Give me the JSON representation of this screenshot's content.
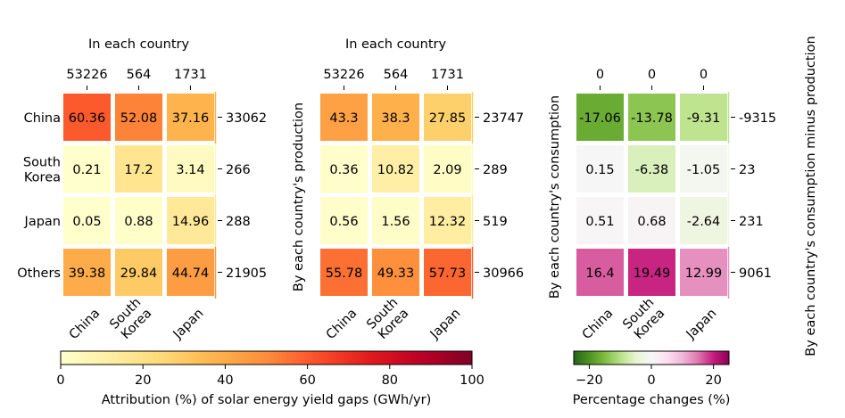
{
  "chart_data": [
    {
      "type": "heatmap",
      "panel": "production",
      "title": "In each country",
      "ylabel": "",
      "row_labels": [
        "China",
        "South\nKorea",
        "Japan",
        "Others"
      ],
      "col_labels": [
        "China",
        "South\nKorea",
        "Japan"
      ],
      "top_tick_labels": [
        "53226",
        "564",
        "1731"
      ],
      "right_tick_labels": [
        "33062",
        "266",
        "288",
        "21905"
      ],
      "values": [
        [
          60.36,
          52.08,
          37.16
        ],
        [
          0.21,
          17.2,
          3.14
        ],
        [
          0.05,
          0.88,
          14.96
        ],
        [
          39.38,
          29.84,
          44.74
        ]
      ],
      "cell_labels": [
        [
          "60.36",
          "52.08",
          "37.16"
        ],
        [
          "0.21",
          "17.2",
          "3.14"
        ],
        [
          "0.05",
          "0.88",
          "14.96"
        ],
        [
          "39.38",
          "29.84",
          "44.74"
        ]
      ],
      "colormap": "YlOrRd",
      "vlim": [
        0,
        100
      ]
    },
    {
      "type": "heatmap",
      "panel": "consumption",
      "title": "In each country",
      "ylabel": "By each country's production",
      "row_labels": [
        "China",
        "South\nKorea",
        "Japan",
        "Others"
      ],
      "col_labels": [
        "China",
        "South\nKorea",
        "Japan"
      ],
      "top_tick_labels": [
        "53226",
        "564",
        "1731"
      ],
      "right_tick_labels": [
        "23747",
        "289",
        "519",
        "30966"
      ],
      "values": [
        [
          43.3,
          38.3,
          27.85
        ],
        [
          0.36,
          10.82,
          2.09
        ],
        [
          0.56,
          1.56,
          12.32
        ],
        [
          55.78,
          49.33,
          57.73
        ]
      ],
      "cell_labels": [
        [
          "43.3",
          "38.3",
          "27.85"
        ],
        [
          "0.36",
          "10.82",
          "2.09"
        ],
        [
          "0.56",
          "1.56",
          "12.32"
        ],
        [
          "55.78",
          "49.33",
          "57.73"
        ]
      ],
      "colormap": "YlOrRd",
      "vlim": [
        0,
        100
      ]
    },
    {
      "type": "heatmap",
      "panel": "difference",
      "title": "",
      "ylabel": "By each country's consumption",
      "right_ylabel": "By each country's consumption minus production",
      "row_labels": [
        "China",
        "South\nKorea",
        "Japan",
        "Others"
      ],
      "col_labels": [
        "China",
        "South\nKorea",
        "Japan"
      ],
      "top_tick_labels": [
        "0",
        "0",
        "0"
      ],
      "right_tick_labels": [
        "-9315",
        "23",
        "231",
        "9061"
      ],
      "values": [
        [
          -17.06,
          -13.78,
          -9.31
        ],
        [
          0.15,
          -6.38,
          -1.05
        ],
        [
          0.51,
          0.68,
          -2.64
        ],
        [
          16.4,
          19.49,
          12.99
        ]
      ],
      "cell_labels": [
        [
          "-17.06",
          "-13.78",
          "-9.31"
        ],
        [
          "0.15",
          "-6.38",
          "-1.05"
        ],
        [
          "0.51",
          "0.68",
          "-2.64"
        ],
        [
          "16.4",
          "19.49",
          "12.99"
        ]
      ],
      "colormap": "PiYG_r",
      "vlim": [
        -25,
        25
      ]
    }
  ],
  "colorbars": [
    {
      "label": "Attribution (%) of solar energy yield gaps (GWh/yr)",
      "range": [
        0,
        100
      ],
      "ticks": [
        0,
        20,
        40,
        60,
        80,
        100
      ],
      "tick_labels": [
        "0",
        "20",
        "40",
        "60",
        "80",
        "100"
      ],
      "colormap": "YlOrRd"
    },
    {
      "label": "Percentage changes (%)",
      "range": [
        -25,
        25
      ],
      "ticks": [
        -20,
        0,
        20
      ],
      "tick_labels": [
        "−20",
        "0",
        "20"
      ],
      "colormap": "PiYG_r"
    }
  ],
  "colormaps": {
    "YlOrRd": [
      "#ffffcc",
      "#ffeda0",
      "#fed976",
      "#feb24c",
      "#fd8d3c",
      "#fc4e2a",
      "#e31a1c",
      "#bd0026",
      "#800026"
    ],
    "PiYG_r": [
      "#276419",
      "#4d9221",
      "#7fbc41",
      "#b8e186",
      "#e6f5d0",
      "#f7f7f7",
      "#fde0ef",
      "#f1b6da",
      "#de77ae",
      "#c51b7d",
      "#8e0152"
    ]
  }
}
